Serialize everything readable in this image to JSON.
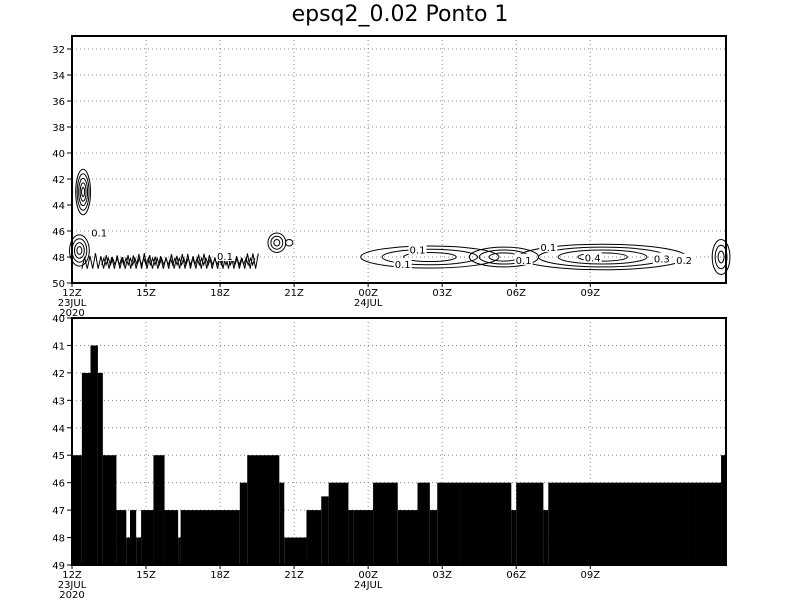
{
  "title": "epsq2_0.02 Ponto 1",
  "chart_data": [
    {
      "type": "contour",
      "x_ticks": [
        "12Z",
        "15Z",
        "18Z",
        "21Z",
        "00Z",
        "03Z",
        "06Z",
        "09Z"
      ],
      "x_hours": [
        0,
        3,
        6,
        9,
        12,
        15,
        18,
        21
      ],
      "x_range_hours": [
        0,
        26.5
      ],
      "date_labels": [
        {
          "hour": 0,
          "lines": [
            "23JUL",
            "2020"
          ]
        },
        {
          "hour": 12,
          "lines": [
            "24JUL"
          ]
        }
      ],
      "y_ticks": [
        32,
        34,
        36,
        38,
        40,
        42,
        44,
        46,
        48,
        50
      ],
      "ylim": [
        31,
        50
      ],
      "y_inverted": true,
      "grid": "dotted",
      "contour_labels": [
        {
          "text": "0.1",
          "x": 1.1,
          "y": 46.2
        },
        {
          "text": "0.1",
          "x": 6.2,
          "y": 48.0
        },
        {
          "text": "0.1",
          "x": 14.0,
          "y": 47.5
        },
        {
          "text": "0.1",
          "x": 13.4,
          "y": 48.6
        },
        {
          "text": "0.1",
          "x": 19.3,
          "y": 47.3
        },
        {
          "text": "0.1",
          "x": 18.3,
          "y": 48.3
        },
        {
          "text": "0.4",
          "x": 21.1,
          "y": 48.1
        },
        {
          "text": "0.3",
          "x": 23.9,
          "y": 48.2
        },
        {
          "text": "0.2",
          "x": 24.8,
          "y": 48.3
        }
      ]
    },
    {
      "type": "bar",
      "orientation": "step",
      "x_ticks": [
        "12Z",
        "15Z",
        "18Z",
        "21Z",
        "00Z",
        "03Z",
        "06Z",
        "09Z"
      ],
      "x_hours": [
        0,
        3,
        6,
        9,
        12,
        15,
        18,
        21
      ],
      "x_range_hours": [
        0,
        26.5
      ],
      "date_labels": [
        {
          "hour": 0,
          "lines": [
            "23JUL",
            "2020"
          ]
        },
        {
          "hour": 12,
          "lines": [
            "24JUL"
          ]
        }
      ],
      "y_ticks": [
        40,
        41,
        42,
        43,
        44,
        45,
        46,
        47,
        48,
        49
      ],
      "ylim": [
        40,
        49
      ],
      "y_inverted": true,
      "grid": "dotted",
      "bar_color": "#000000",
      "segments": [
        {
          "from": 0.0,
          "to": 0.4,
          "value": 45
        },
        {
          "from": 0.4,
          "to": 0.75,
          "value": 42
        },
        {
          "from": 0.75,
          "to": 1.05,
          "value": 41
        },
        {
          "from": 1.05,
          "to": 1.25,
          "value": 42
        },
        {
          "from": 1.25,
          "to": 1.8,
          "value": 45
        },
        {
          "from": 1.8,
          "to": 2.2,
          "value": 47
        },
        {
          "from": 2.2,
          "to": 2.35,
          "value": 48
        },
        {
          "from": 2.35,
          "to": 2.6,
          "value": 47
        },
        {
          "from": 2.6,
          "to": 2.8,
          "value": 48
        },
        {
          "from": 2.8,
          "to": 3.3,
          "value": 47
        },
        {
          "from": 3.3,
          "to": 3.75,
          "value": 45
        },
        {
          "from": 3.75,
          "to": 4.3,
          "value": 47
        },
        {
          "from": 4.3,
          "to": 4.4,
          "value": 48
        },
        {
          "from": 4.4,
          "to": 6.8,
          "value": 47
        },
        {
          "from": 6.8,
          "to": 7.1,
          "value": 46
        },
        {
          "from": 7.1,
          "to": 8.4,
          "value": 45
        },
        {
          "from": 8.4,
          "to": 8.6,
          "value": 46
        },
        {
          "from": 8.6,
          "to": 9.5,
          "value": 48
        },
        {
          "from": 9.5,
          "to": 10.1,
          "value": 47
        },
        {
          "from": 10.1,
          "to": 10.4,
          "value": 46.5
        },
        {
          "from": 10.4,
          "to": 11.2,
          "value": 46
        },
        {
          "from": 11.2,
          "to": 11.4,
          "value": 47
        },
        {
          "from": 11.4,
          "to": 12.2,
          "value": 47
        },
        {
          "from": 12.2,
          "to": 13.2,
          "value": 46
        },
        {
          "from": 13.2,
          "to": 14.0,
          "value": 47
        },
        {
          "from": 14.0,
          "to": 14.5,
          "value": 46
        },
        {
          "from": 14.5,
          "to": 14.8,
          "value": 47
        },
        {
          "from": 14.8,
          "to": 15.7,
          "value": 46
        },
        {
          "from": 15.7,
          "to": 17.8,
          "value": 46
        },
        {
          "from": 17.8,
          "to": 18.0,
          "value": 47
        },
        {
          "from": 18.0,
          "to": 19.1,
          "value": 46
        },
        {
          "from": 19.1,
          "to": 19.3,
          "value": 47
        },
        {
          "from": 19.3,
          "to": 25.0,
          "value": 46
        },
        {
          "from": 25.0,
          "to": 26.3,
          "value": 46
        },
        {
          "from": 26.3,
          "to": 26.5,
          "value": 45
        }
      ]
    }
  ]
}
